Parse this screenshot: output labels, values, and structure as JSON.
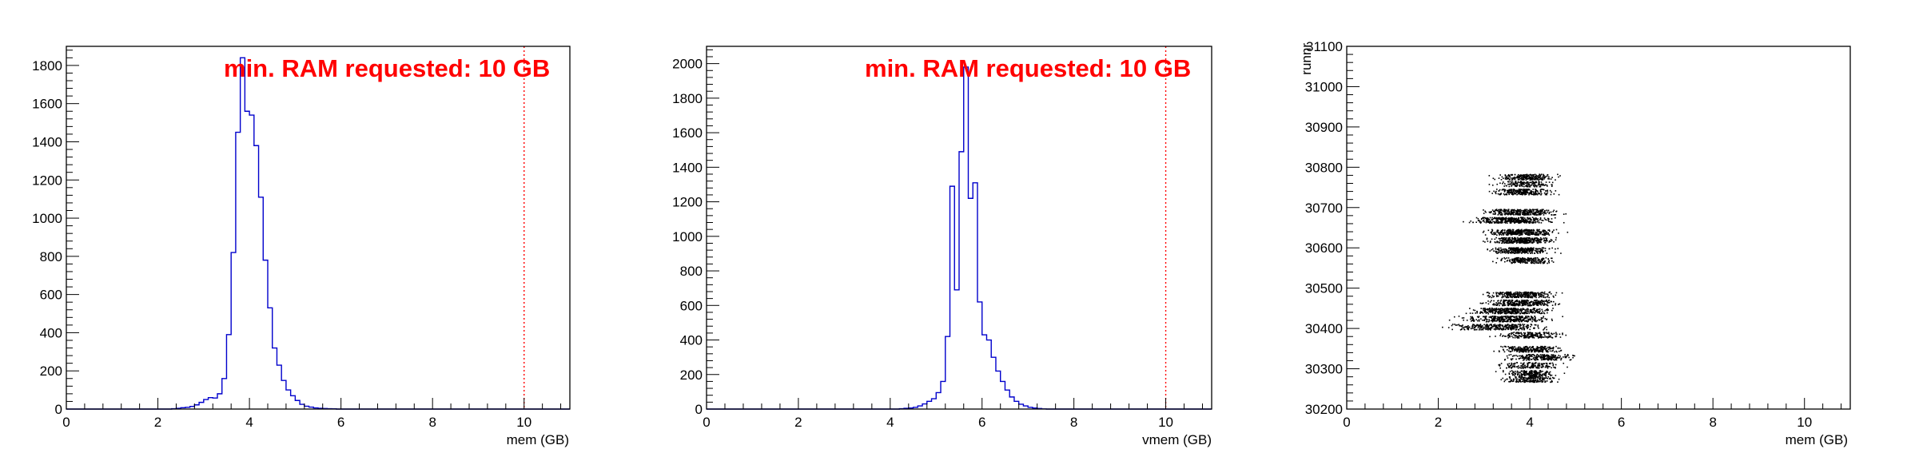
{
  "chart_data": [
    {
      "type": "histogram",
      "xlabel": "mem (GB)",
      "ylabel": "",
      "xlim": [
        0,
        11
      ],
      "ylim": [
        0,
        1900
      ],
      "x_ticks": [
        0,
        2,
        4,
        6,
        8,
        10
      ],
      "y_ticks": [
        0,
        200,
        400,
        600,
        800,
        1000,
        1200,
        1400,
        1600,
        1800
      ],
      "line_color": "#0000cc",
      "threshold": {
        "x": 10,
        "color": "#ff0000",
        "style": "dotted"
      },
      "annotation": "min. RAM requested: 10 GB",
      "bins": [
        [
          2.3,
          2
        ],
        [
          2.4,
          4
        ],
        [
          2.5,
          7
        ],
        [
          2.6,
          9
        ],
        [
          2.7,
          14
        ],
        [
          2.8,
          22
        ],
        [
          2.9,
          35
        ],
        [
          3.0,
          50
        ],
        [
          3.1,
          60
        ],
        [
          3.2,
          58
        ],
        [
          3.3,
          80
        ],
        [
          3.4,
          160
        ],
        [
          3.5,
          390
        ],
        [
          3.6,
          820
        ],
        [
          3.7,
          1450
        ],
        [
          3.8,
          1840
        ],
        [
          3.9,
          1560
        ],
        [
          4.0,
          1540
        ],
        [
          4.1,
          1380
        ],
        [
          4.2,
          1110
        ],
        [
          4.3,
          780
        ],
        [
          4.4,
          530
        ],
        [
          4.5,
          320
        ],
        [
          4.6,
          230
        ],
        [
          4.7,
          150
        ],
        [
          4.8,
          100
        ],
        [
          4.9,
          70
        ],
        [
          5.0,
          45
        ],
        [
          5.1,
          25
        ],
        [
          5.2,
          15
        ],
        [
          5.3,
          10
        ],
        [
          5.4,
          6
        ],
        [
          5.5,
          4
        ],
        [
          5.6,
          3
        ],
        [
          5.7,
          2
        ],
        [
          5.8,
          1
        ]
      ]
    },
    {
      "type": "histogram",
      "xlabel": "vmem (GB)",
      "ylabel": "",
      "xlim": [
        0,
        11
      ],
      "ylim": [
        0,
        2100
      ],
      "x_ticks": [
        0,
        2,
        4,
        6,
        8,
        10
      ],
      "y_ticks": [
        0,
        200,
        400,
        600,
        800,
        1000,
        1200,
        1400,
        1600,
        1800,
        2000
      ],
      "line_color": "#0000cc",
      "threshold": {
        "x": 10,
        "color": "#ff0000",
        "style": "dotted"
      },
      "annotation": "min. RAM requested: 10 GB",
      "bins": [
        [
          4.2,
          2
        ],
        [
          4.3,
          4
        ],
        [
          4.4,
          6
        ],
        [
          4.5,
          10
        ],
        [
          4.6,
          18
        ],
        [
          4.7,
          30
        ],
        [
          4.8,
          45
        ],
        [
          4.9,
          60
        ],
        [
          5.0,
          95
        ],
        [
          5.1,
          160
        ],
        [
          5.2,
          420
        ],
        [
          5.3,
          1290
        ],
        [
          5.4,
          690
        ],
        [
          5.5,
          1490
        ],
        [
          5.6,
          1980
        ],
        [
          5.7,
          1220
        ],
        [
          5.8,
          1310
        ],
        [
          5.9,
          620
        ],
        [
          6.0,
          430
        ],
        [
          6.1,
          400
        ],
        [
          6.2,
          300
        ],
        [
          6.3,
          220
        ],
        [
          6.4,
          160
        ],
        [
          6.5,
          110
        ],
        [
          6.6,
          70
        ],
        [
          6.7,
          45
        ],
        [
          6.8,
          28
        ],
        [
          6.9,
          18
        ],
        [
          7.0,
          10
        ],
        [
          7.1,
          6
        ],
        [
          7.2,
          3
        ],
        [
          7.3,
          1
        ]
      ]
    },
    {
      "type": "scatter",
      "xlabel": "mem (GB)",
      "ylabel": "runnr",
      "xlim": [
        0,
        11
      ],
      "ylim": [
        30200,
        31100
      ],
      "x_ticks": [
        0,
        2,
        4,
        6,
        8,
        10
      ],
      "y_ticks": [
        30200,
        30300,
        30400,
        30500,
        30600,
        30700,
        30800,
        30900,
        31000,
        31100
      ],
      "marker_color": "#000000",
      "bands": [
        {
          "run": 30777,
          "center": 3.9,
          "spread": 0.55,
          "count": 220
        },
        {
          "run": 30760,
          "center": 3.9,
          "spread": 0.5,
          "count": 160
        },
        {
          "run": 30740,
          "center": 3.8,
          "spread": 0.55,
          "count": 260
        },
        {
          "run": 30690,
          "center": 3.8,
          "spread": 0.6,
          "count": 320
        },
        {
          "run": 30670,
          "center": 3.6,
          "spread": 0.7,
          "count": 380
        },
        {
          "run": 30640,
          "center": 3.8,
          "spread": 0.6,
          "count": 360
        },
        {
          "run": 30620,
          "center": 3.8,
          "spread": 0.6,
          "count": 340
        },
        {
          "run": 30595,
          "center": 3.8,
          "spread": 0.55,
          "count": 300
        },
        {
          "run": 30570,
          "center": 3.9,
          "spread": 0.5,
          "count": 220
        },
        {
          "run": 30485,
          "center": 3.8,
          "spread": 0.6,
          "count": 300
        },
        {
          "run": 30465,
          "center": 3.8,
          "spread": 0.65,
          "count": 320
        },
        {
          "run": 30445,
          "center": 3.6,
          "spread": 0.7,
          "count": 340
        },
        {
          "run": 30425,
          "center": 3.5,
          "spread": 0.8,
          "count": 320
        },
        {
          "run": 30405,
          "center": 3.3,
          "spread": 0.9,
          "count": 300
        },
        {
          "run": 30385,
          "center": 4.0,
          "spread": 0.6,
          "count": 200
        },
        {
          "run": 30350,
          "center": 4.0,
          "spread": 0.55,
          "count": 240
        },
        {
          "run": 30330,
          "center": 4.2,
          "spread": 0.6,
          "count": 220
        },
        {
          "run": 30310,
          "center": 4.0,
          "spread": 0.55,
          "count": 160
        },
        {
          "run": 30290,
          "center": 4.0,
          "spread": 0.5,
          "count": 180
        },
        {
          "run": 30275,
          "center": 4.0,
          "spread": 0.5,
          "count": 200
        }
      ]
    }
  ]
}
